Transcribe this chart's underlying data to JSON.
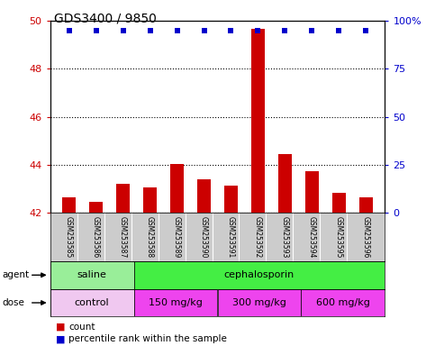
{
  "title": "GDS3400 / 9850",
  "samples": [
    "GSM253585",
    "GSM253586",
    "GSM253587",
    "GSM253588",
    "GSM253589",
    "GSM253590",
    "GSM253591",
    "GSM253592",
    "GSM253593",
    "GSM253594",
    "GSM253595",
    "GSM253596"
  ],
  "count_values": [
    42.65,
    42.45,
    43.2,
    43.05,
    44.05,
    43.4,
    43.15,
    49.65,
    44.45,
    43.75,
    42.85,
    42.65
  ],
  "percentile_values": [
    95,
    95,
    95,
    95,
    95,
    95,
    95,
    95,
    95,
    95,
    95,
    95
  ],
  "ylim_left": [
    42,
    50
  ],
  "ylim_right": [
    0,
    100
  ],
  "yticks_left": [
    42,
    44,
    46,
    48,
    50
  ],
  "yticks_right": [
    0,
    25,
    50,
    75,
    100
  ],
  "bar_color": "#cc0000",
  "dot_color": "#0000cc",
  "agent_saline_color": "#99ee99",
  "agent_ceph_color": "#44ee44",
  "dose_control_color": "#f0c8f0",
  "dose_other_color": "#ee44ee",
  "agent_groups": [
    {
      "label": "saline",
      "start": 0,
      "end": 3
    },
    {
      "label": "cephalosporin",
      "start": 3,
      "end": 12
    }
  ],
  "dose_groups": [
    {
      "label": "control",
      "start": 0,
      "end": 3
    },
    {
      "label": "150 mg/kg",
      "start": 3,
      "end": 6
    },
    {
      "label": "300 mg/kg",
      "start": 6,
      "end": 9
    },
    {
      "label": "600 mg/kg",
      "start": 9,
      "end": 12
    }
  ],
  "legend_count_label": "count",
  "legend_pct_label": "percentile rank within the sample",
  "background_color": "#ffffff",
  "tick_label_color_left": "#cc0000",
  "tick_label_color_right": "#0000cc",
  "title_fontsize": 10,
  "bar_width": 0.5,
  "label_bg_color": "#cccccc",
  "sample_fontsize": 5.5,
  "row_fontsize": 8,
  "legend_fontsize": 7.5
}
